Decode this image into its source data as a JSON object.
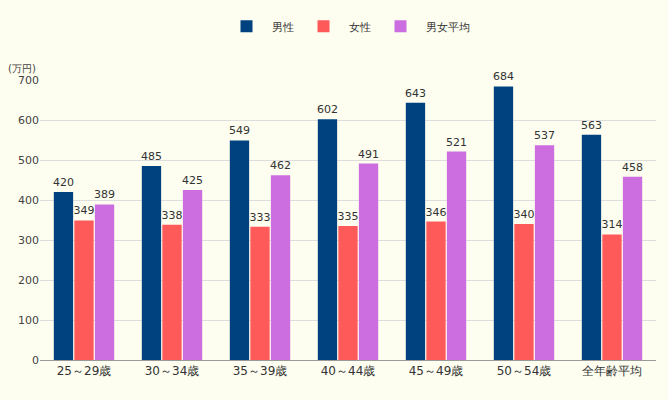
{
  "chart_data": {
    "type": "bar",
    "ylabel": "(万円)",
    "categories": [
      "25～29歳",
      "30～34歳",
      "35～39歳",
      "40～44歳",
      "45～49歳",
      "50～54歳",
      "全年齢平均"
    ],
    "series": [
      {
        "name": "男性",
        "color": "#00427f",
        "values": [
          420,
          485,
          549,
          602,
          643,
          684,
          563
        ]
      },
      {
        "name": "女性",
        "color": "#ff5a5a",
        "values": [
          349,
          338,
          333,
          335,
          346,
          340,
          314
        ]
      },
      {
        "name": "男女平均",
        "color": "#cc6ee0",
        "values": [
          389,
          425,
          462,
          491,
          521,
          537,
          458
        ]
      }
    ],
    "ylim": [
      0,
      700
    ],
    "yticks": [
      0,
      100,
      200,
      300,
      400,
      500,
      600,
      700
    ],
    "grid": true,
    "legend": "top",
    "data_labels": true
  }
}
